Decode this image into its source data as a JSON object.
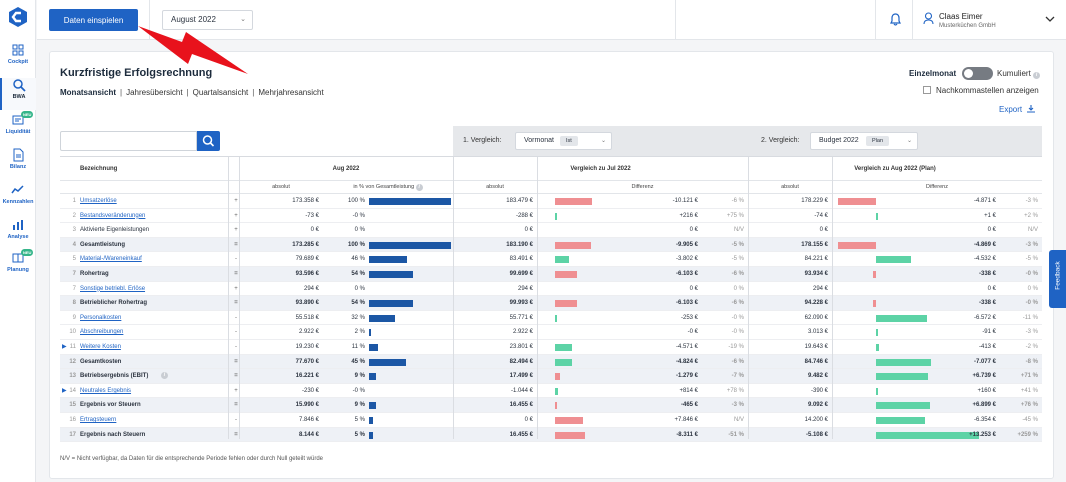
{
  "topbar": {
    "button": "Daten einspielen",
    "month": "August 2022",
    "user_name": "Claas Eimer",
    "company": "Musterküchen GmbH"
  },
  "sidebar": [
    {
      "label": "Cockpit",
      "icon": "cockpit-icon"
    },
    {
      "label": "BWA",
      "icon": "search-doc-icon"
    },
    {
      "label": "Liquidität",
      "icon": "liquidity-icon",
      "badge": "NEU"
    },
    {
      "label": "Bilanz",
      "icon": "balance-icon"
    },
    {
      "label": "Kennzahlen",
      "icon": "kpi-icon"
    },
    {
      "label": "Analyse",
      "icon": "analysis-icon"
    },
    {
      "label": "Planung",
      "icon": "planning-icon",
      "badge": "NEU"
    }
  ],
  "page": {
    "title": "Kurzfristige Erfolgsrechnung",
    "views": [
      "Monatsansicht",
      "Jahresübersicht",
      "Quartalsansicht",
      "Mehrjahresansicht"
    ],
    "toggle_left": "Einzelmonat",
    "toggle_right": "Kumuliert",
    "checkbox": "Nachkommastellen anzeigen",
    "export": "Export",
    "compare1": {
      "label": "1. Vergleich:",
      "value": "Vormonat",
      "pill": "Ist"
    },
    "compare2": {
      "label": "2. Vergleich:",
      "value": "Budget 2022",
      "pill": "Plan"
    },
    "footnote": "N/V = Nicht verfügbar, da Daten für die entsprechende Periode fehlen oder durch Null geteilt würde",
    "feedback": "Feedback"
  },
  "table": {
    "headers": {
      "name": "Bezeichnung",
      "current": "Aug 2022",
      "cmp1": "Vergleich zu Jul 2022",
      "cmp2": "Vergleich zu Aug 2022 (Plan)"
    },
    "subheaders": {
      "abs": "absolut",
      "pct": "in % von Gesamtleistung",
      "abs1": "absolut",
      "diff1": "Differenz",
      "abs2": "absolut",
      "diff2": "Differenz"
    },
    "rows": [
      {
        "n": "1",
        "label": "Umsatzerlöse",
        "op": "+",
        "link": true,
        "sub": false,
        "arrow": false,
        "abs": "173.358 €",
        "pct": "100 %",
        "pctv": 100,
        "a1": "183.479 €",
        "d1": "-10.121 €",
        "d1v": -10121,
        "p1": "-6 %",
        "a2": "178.229 €",
        "d2": "-4.871 €",
        "d2v": -4871,
        "p2": "-3 %"
      },
      {
        "n": "2",
        "label": "Bestandsveränderungen",
        "op": "+",
        "link": true,
        "sub": false,
        "arrow": false,
        "abs": "-73 €",
        "pct": "-0 %",
        "pctv": 0,
        "a1": "-288 €",
        "d1": "+216 €",
        "d1v": 216,
        "p1": "+75 %",
        "a2": "-74 €",
        "d2": "+1 €",
        "d2v": 1,
        "p2": "+2 %"
      },
      {
        "n": "3",
        "label": "Aktivierte Eigenleistungen",
        "op": "+",
        "link": false,
        "sub": false,
        "arrow": false,
        "abs": "0 €",
        "pct": "0 %",
        "pctv": 0,
        "a1": "0 €",
        "d1": "0 €",
        "d1v": 0,
        "p1": "N/V",
        "a2": "0 €",
        "d2": "0 €",
        "d2v": 0,
        "p2": "N/V"
      },
      {
        "n": "4",
        "label": "Gesamtleistung",
        "op": "=",
        "link": false,
        "sub": true,
        "arrow": false,
        "abs": "173.285 €",
        "pct": "100 %",
        "pctv": 100,
        "a1": "183.190 €",
        "d1": "-9.905 €",
        "d1v": -9905,
        "p1": "-5 %",
        "a2": "178.155 €",
        "d2": "-4.869 €",
        "d2v": -4869,
        "p2": "-3 %"
      },
      {
        "n": "5",
        "label": "Material-/Wareneinkauf",
        "op": "-",
        "link": true,
        "sub": false,
        "arrow": false,
        "abs": "79.689 €",
        "pct": "46 %",
        "pctv": 46,
        "a1": "83.491 €",
        "d1": "-3.802 €",
        "d1v": 3802,
        "p1": "-5 %",
        "a2": "84.221 €",
        "d2": "-4.532 €",
        "d2v": 4532,
        "p2": "-5 %"
      },
      {
        "n": "7",
        "label": "Rohertrag",
        "op": "=",
        "link": false,
        "sub": true,
        "arrow": false,
        "abs": "93.596 €",
        "pct": "54 %",
        "pctv": 54,
        "a1": "99.699 €",
        "d1": "-6.103 €",
        "d1v": -6103,
        "p1": "-6 %",
        "a2": "93.934 €",
        "d2": "-338 €",
        "d2v": -338,
        "p2": "-0 %"
      },
      {
        "n": "7",
        "label": "Sonstige betriebl. Erlöse",
        "op": "+",
        "link": true,
        "sub": false,
        "arrow": false,
        "abs": "294 €",
        "pct": "0 %",
        "pctv": 0,
        "a1": "294 €",
        "d1": "0 €",
        "d1v": 0,
        "p1": "0 %",
        "a2": "294 €",
        "d2": "0 €",
        "d2v": 0,
        "p2": "0 %"
      },
      {
        "n": "8",
        "label": "Betrieblicher Rohertrag",
        "op": "=",
        "link": false,
        "sub": true,
        "arrow": false,
        "abs": "93.890 €",
        "pct": "54 %",
        "pctv": 54,
        "a1": "99.993 €",
        "d1": "-6.103 €",
        "d1v": -6103,
        "p1": "-6 %",
        "a2": "94.228 €",
        "d2": "-338 €",
        "d2v": -338,
        "p2": "-0 %"
      },
      {
        "n": "9",
        "label": "Personalkosten",
        "op": "-",
        "link": true,
        "sub": false,
        "arrow": false,
        "abs": "55.518 €",
        "pct": "32 %",
        "pctv": 32,
        "a1": "55.771 €",
        "d1": "-253 €",
        "d1v": 253,
        "p1": "-0 %",
        "a2": "62.090 €",
        "d2": "-6.572 €",
        "d2v": 6572,
        "p2": "-11 %"
      },
      {
        "n": "10",
        "label": "Abschreibungen",
        "op": "-",
        "link": true,
        "sub": false,
        "arrow": false,
        "abs": "2.922 €",
        "pct": "2 %",
        "pctv": 2,
        "a1": "2.922 €",
        "d1": "-0 €",
        "d1v": 0,
        "p1": "-0 %",
        "a2": "3.013 €",
        "d2": "-91 €",
        "d2v": 91,
        "p2": "-3 %"
      },
      {
        "n": "11",
        "label": "Weitere Kosten",
        "op": "-",
        "link": true,
        "sub": false,
        "arrow": true,
        "abs": "19.230 €",
        "pct": "11 %",
        "pctv": 11,
        "a1": "23.801 €",
        "d1": "-4.571 €",
        "d1v": 4571,
        "p1": "-19 %",
        "a2": "19.643 €",
        "d2": "-413 €",
        "d2v": 413,
        "p2": "-2 %"
      },
      {
        "n": "12",
        "label": "Gesamtkosten",
        "op": "=",
        "link": false,
        "sub": true,
        "arrow": false,
        "abs": "77.670 €",
        "pct": "45 %",
        "pctv": 45,
        "a1": "82.494 €",
        "d1": "-4.824 €",
        "d1v": 4824,
        "p1": "-6 %",
        "a2": "84.746 €",
        "d2": "-7.077 €",
        "d2v": 7077,
        "p2": "-8 %"
      },
      {
        "n": "13",
        "label": "Betriebsergebnis (EBIT)",
        "op": "=",
        "link": false,
        "sub": true,
        "arrow": false,
        "info": true,
        "abs": "16.221 €",
        "pct": "9 %",
        "pctv": 9,
        "a1": "17.499 €",
        "d1": "-1.279 €",
        "d1v": -1279,
        "p1": "-7 %",
        "a2": "9.482 €",
        "d2": "+6.739 €",
        "d2v": 6739,
        "p2": "+71 %"
      },
      {
        "n": "14",
        "label": "Neutrales Ergebnis",
        "op": "+",
        "link": true,
        "sub": false,
        "arrow": true,
        "abs": "-230 €",
        "pct": "-0 %",
        "pctv": 0,
        "a1": "-1.044 €",
        "d1": "+814 €",
        "d1v": 814,
        "p1": "+78 %",
        "a2": "-390 €",
        "d2": "+160 €",
        "d2v": 160,
        "p2": "+41 %"
      },
      {
        "n": "15",
        "label": "Ergebnis vor Steuern",
        "op": "=",
        "link": false,
        "sub": true,
        "arrow": false,
        "abs": "15.990 €",
        "pct": "9 %",
        "pctv": 9,
        "a1": "16.455 €",
        "d1": "-465 €",
        "d1v": -465,
        "p1": "-3 %",
        "a2": "9.092 €",
        "d2": "+6.899 €",
        "d2v": 6899,
        "p2": "+76 %"
      },
      {
        "n": "16",
        "label": "Ertragsteuern",
        "op": "-",
        "link": true,
        "sub": false,
        "arrow": false,
        "abs": "7.846 €",
        "pct": "5 %",
        "pctv": 5,
        "a1": "0 €",
        "d1": "+7.846 €",
        "d1v": -7846,
        "p1": "N/V",
        "a2": "14.200 €",
        "d2": "-6.354 €",
        "d2v": 6354,
        "p2": "-45 %"
      },
      {
        "n": "17",
        "label": "Ergebnis nach Steuern",
        "op": "=",
        "link": false,
        "sub": true,
        "arrow": false,
        "abs": "8.144 €",
        "pct": "5 %",
        "pctv": 5,
        "a1": "16.455 €",
        "d1": "-8.311 €",
        "d1v": -8311,
        "p1": "-51 %",
        "a2": "-5.108 €",
        "d2": "+13.253 €",
        "d2v": 13253,
        "p2": "+259 %"
      }
    ]
  },
  "colors": {
    "primary": "#1f63c4",
    "bar_blue": "#1c57a5",
    "negative": "#ef8f92",
    "positive": "#5dd3a6"
  }
}
